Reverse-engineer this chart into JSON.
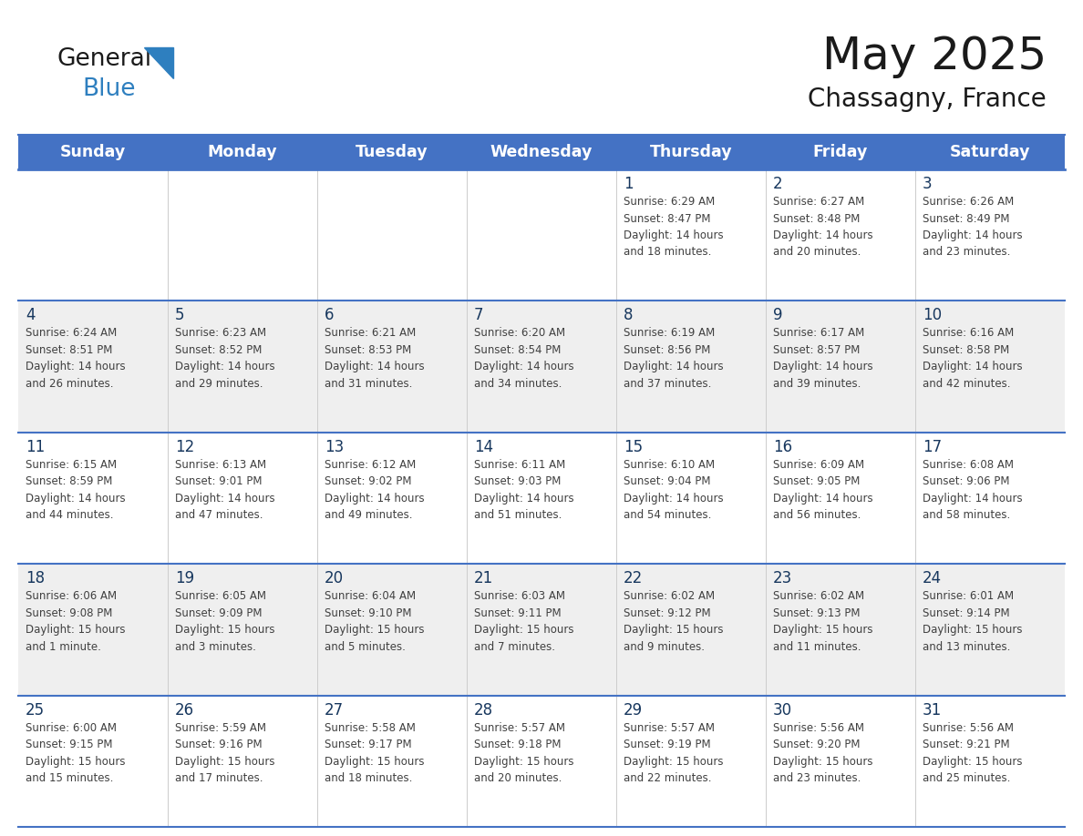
{
  "title": "May 2025",
  "subtitle": "Chassagny, France",
  "header_bg": "#4472C4",
  "header_text": "#FFFFFF",
  "header_font_size": 13,
  "day_names": [
    "Sunday",
    "Monday",
    "Tuesday",
    "Wednesday",
    "Thursday",
    "Friday",
    "Saturday"
  ],
  "title_font_size": 36,
  "subtitle_font_size": 20,
  "cell_bg_week1": "#FFFFFF",
  "cell_bg_week2": "#EFEFEF",
  "cell_bg_week3": "#FFFFFF",
  "cell_bg_week4": "#EFEFEF",
  "cell_bg_week5": "#FFFFFF",
  "day_number_color": "#17375E",
  "info_text_color": "#404040",
  "grid_color": "#4472C4",
  "divider_color": "#4472C4",
  "weeks": [
    [
      {
        "day": "",
        "info": ""
      },
      {
        "day": "",
        "info": ""
      },
      {
        "day": "",
        "info": ""
      },
      {
        "day": "",
        "info": ""
      },
      {
        "day": "1",
        "info": "Sunrise: 6:29 AM\nSunset: 8:47 PM\nDaylight: 14 hours\nand 18 minutes."
      },
      {
        "day": "2",
        "info": "Sunrise: 6:27 AM\nSunset: 8:48 PM\nDaylight: 14 hours\nand 20 minutes."
      },
      {
        "day": "3",
        "info": "Sunrise: 6:26 AM\nSunset: 8:49 PM\nDaylight: 14 hours\nand 23 minutes."
      }
    ],
    [
      {
        "day": "4",
        "info": "Sunrise: 6:24 AM\nSunset: 8:51 PM\nDaylight: 14 hours\nand 26 minutes."
      },
      {
        "day": "5",
        "info": "Sunrise: 6:23 AM\nSunset: 8:52 PM\nDaylight: 14 hours\nand 29 minutes."
      },
      {
        "day": "6",
        "info": "Sunrise: 6:21 AM\nSunset: 8:53 PM\nDaylight: 14 hours\nand 31 minutes."
      },
      {
        "day": "7",
        "info": "Sunrise: 6:20 AM\nSunset: 8:54 PM\nDaylight: 14 hours\nand 34 minutes."
      },
      {
        "day": "8",
        "info": "Sunrise: 6:19 AM\nSunset: 8:56 PM\nDaylight: 14 hours\nand 37 minutes."
      },
      {
        "day": "9",
        "info": "Sunrise: 6:17 AM\nSunset: 8:57 PM\nDaylight: 14 hours\nand 39 minutes."
      },
      {
        "day": "10",
        "info": "Sunrise: 6:16 AM\nSunset: 8:58 PM\nDaylight: 14 hours\nand 42 minutes."
      }
    ],
    [
      {
        "day": "11",
        "info": "Sunrise: 6:15 AM\nSunset: 8:59 PM\nDaylight: 14 hours\nand 44 minutes."
      },
      {
        "day": "12",
        "info": "Sunrise: 6:13 AM\nSunset: 9:01 PM\nDaylight: 14 hours\nand 47 minutes."
      },
      {
        "day": "13",
        "info": "Sunrise: 6:12 AM\nSunset: 9:02 PM\nDaylight: 14 hours\nand 49 minutes."
      },
      {
        "day": "14",
        "info": "Sunrise: 6:11 AM\nSunset: 9:03 PM\nDaylight: 14 hours\nand 51 minutes."
      },
      {
        "day": "15",
        "info": "Sunrise: 6:10 AM\nSunset: 9:04 PM\nDaylight: 14 hours\nand 54 minutes."
      },
      {
        "day": "16",
        "info": "Sunrise: 6:09 AM\nSunset: 9:05 PM\nDaylight: 14 hours\nand 56 minutes."
      },
      {
        "day": "17",
        "info": "Sunrise: 6:08 AM\nSunset: 9:06 PM\nDaylight: 14 hours\nand 58 minutes."
      }
    ],
    [
      {
        "day": "18",
        "info": "Sunrise: 6:06 AM\nSunset: 9:08 PM\nDaylight: 15 hours\nand 1 minute."
      },
      {
        "day": "19",
        "info": "Sunrise: 6:05 AM\nSunset: 9:09 PM\nDaylight: 15 hours\nand 3 minutes."
      },
      {
        "day": "20",
        "info": "Sunrise: 6:04 AM\nSunset: 9:10 PM\nDaylight: 15 hours\nand 5 minutes."
      },
      {
        "day": "21",
        "info": "Sunrise: 6:03 AM\nSunset: 9:11 PM\nDaylight: 15 hours\nand 7 minutes."
      },
      {
        "day": "22",
        "info": "Sunrise: 6:02 AM\nSunset: 9:12 PM\nDaylight: 15 hours\nand 9 minutes."
      },
      {
        "day": "23",
        "info": "Sunrise: 6:02 AM\nSunset: 9:13 PM\nDaylight: 15 hours\nand 11 minutes."
      },
      {
        "day": "24",
        "info": "Sunrise: 6:01 AM\nSunset: 9:14 PM\nDaylight: 15 hours\nand 13 minutes."
      }
    ],
    [
      {
        "day": "25",
        "info": "Sunrise: 6:00 AM\nSunset: 9:15 PM\nDaylight: 15 hours\nand 15 minutes."
      },
      {
        "day": "26",
        "info": "Sunrise: 5:59 AM\nSunset: 9:16 PM\nDaylight: 15 hours\nand 17 minutes."
      },
      {
        "day": "27",
        "info": "Sunrise: 5:58 AM\nSunset: 9:17 PM\nDaylight: 15 hours\nand 18 minutes."
      },
      {
        "day": "28",
        "info": "Sunrise: 5:57 AM\nSunset: 9:18 PM\nDaylight: 15 hours\nand 20 minutes."
      },
      {
        "day": "29",
        "info": "Sunrise: 5:57 AM\nSunset: 9:19 PM\nDaylight: 15 hours\nand 22 minutes."
      },
      {
        "day": "30",
        "info": "Sunrise: 5:56 AM\nSunset: 9:20 PM\nDaylight: 15 hours\nand 23 minutes."
      },
      {
        "day": "31",
        "info": "Sunrise: 5:56 AM\nSunset: 9:21 PM\nDaylight: 15 hours\nand 25 minutes."
      }
    ]
  ],
  "logo_general_color": "#1a1a1a",
  "logo_blue_color": "#2E7FBF",
  "logo_triangle_color": "#2E7FBF",
  "week_bg_colors": [
    "#FFFFFF",
    "#EFEFEF",
    "#FFFFFF",
    "#EFEFEF",
    "#FFFFFF"
  ]
}
